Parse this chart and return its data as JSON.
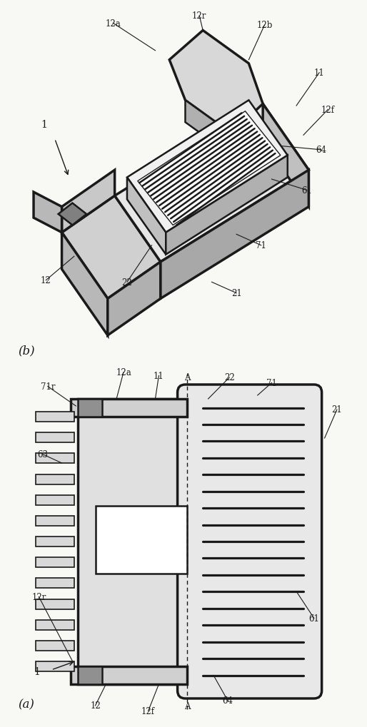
{
  "bg_color": "#f8f8f5",
  "lc": "#1a1a1a",
  "lw_t": 2.5,
  "lw_m": 1.8,
  "lw_n": 1.0,
  "fig_w": 4.94,
  "fig_h": 10.0,
  "top_panel": {
    "note": "isometric/3D connector view - panel (b)"
  },
  "bottom_panel": {
    "note": "front/plan view - panel (a)"
  }
}
